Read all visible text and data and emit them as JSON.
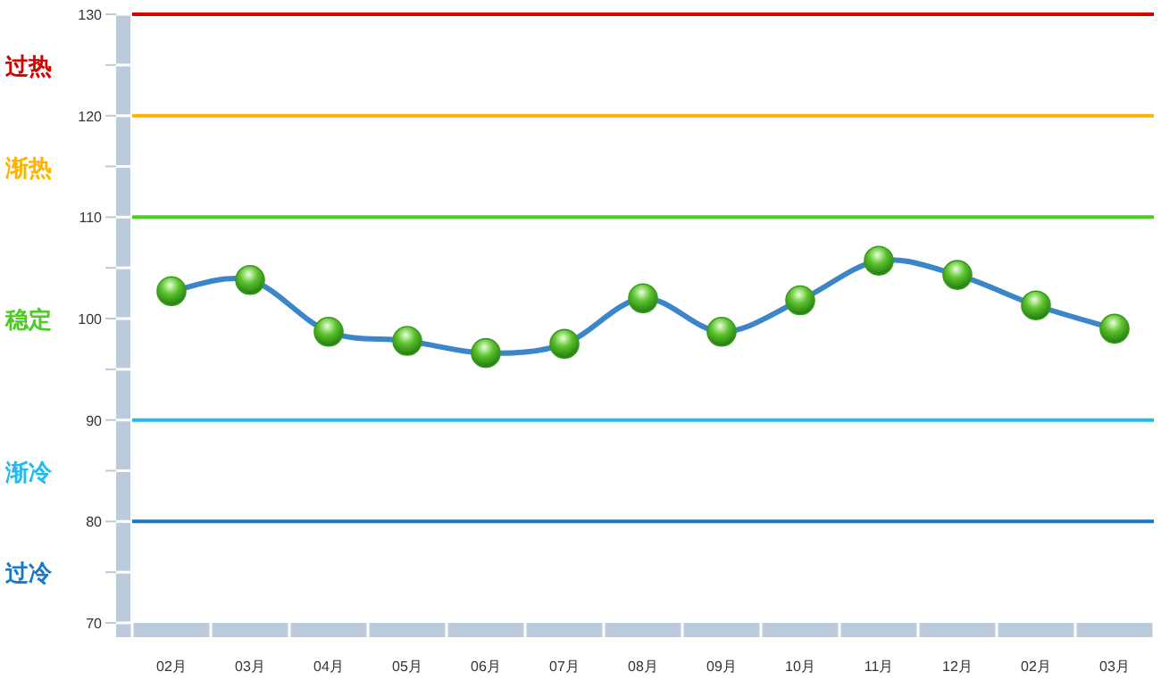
{
  "chart_data": {
    "type": "line",
    "categories": [
      "02月",
      "03月",
      "04月",
      "05月",
      "06月",
      "07月",
      "08月",
      "09月",
      "10月",
      "11月",
      "12月",
      "02月",
      "03月"
    ],
    "series": [
      {
        "color": "#3a86c8",
        "values": [
          102.7,
          103.8,
          98.7,
          97.8,
          96.6,
          97.5,
          102.0,
          98.7,
          101.8,
          105.7,
          104.3,
          101.3,
          99.0
        ]
      }
    ],
    "ylim": [
      70,
      130
    ],
    "yticks": [
      70,
      {
        "value": 75,
        "label": null
      },
      80,
      {
        "value": 85,
        "label": null
      },
      90,
      {
        "value": 95,
        "label": null
      },
      100,
      {
        "value": 105,
        "label": null
      },
      110,
      {
        "value": 115,
        "label": null
      },
      120,
      {
        "value": 125,
        "label": null
      },
      130
    ],
    "ref_lines": [
      {
        "axis": "y",
        "value": 130,
        "label": "过热",
        "color": "#d40000"
      },
      {
        "axis": "y",
        "value": 120,
        "label": "渐热",
        "color": "#ffb300"
      },
      {
        "axis": "y",
        "value": 110,
        "label": "稳定",
        "color": "#4ccc22"
      },
      {
        "axis": "y",
        "value": 90,
        "label": "渐冷",
        "color": "#22bbee"
      },
      {
        "axis": "y",
        "value": 80,
        "label": "过冷",
        "color": "#1a78c8"
      }
    ],
    "marker": "circle",
    "grid": false
  }
}
